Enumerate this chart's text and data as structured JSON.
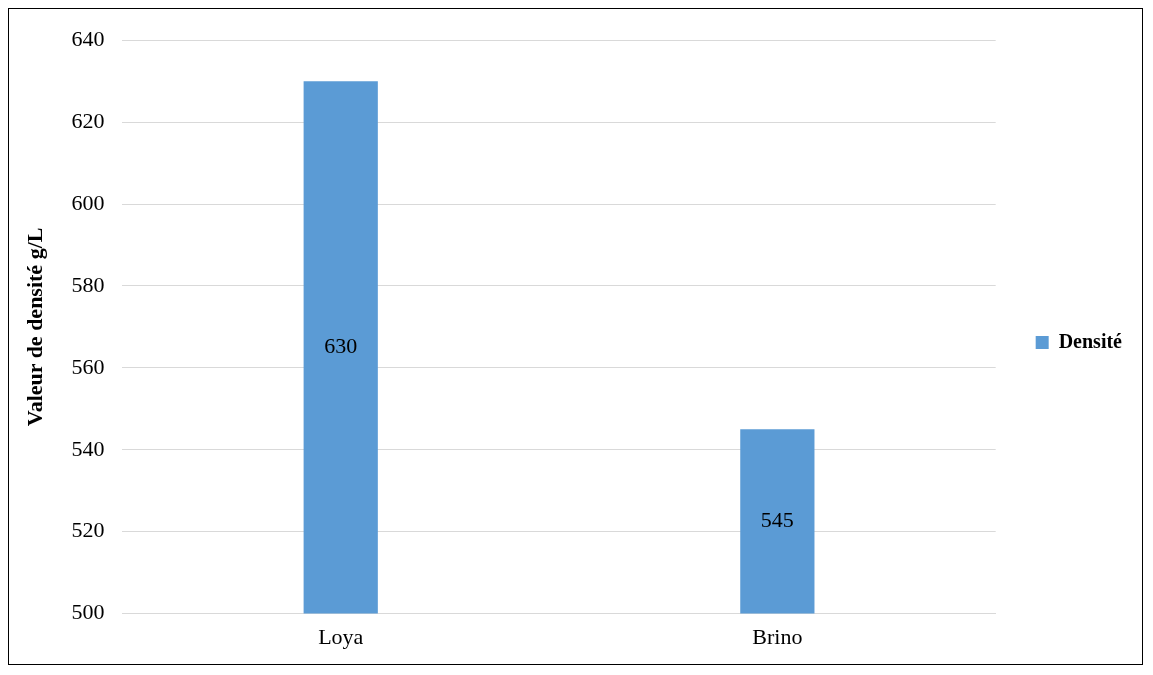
{
  "chart_data": {
    "type": "bar",
    "ylabel": "Valeur de densité g/L",
    "categories": [
      "Loya",
      "Brino"
    ],
    "series": [
      {
        "name": "Densité",
        "color": "#5b9bd5",
        "values": [
          630,
          545
        ]
      }
    ],
    "ylim": [
      500,
      640
    ],
    "yticks": [
      500,
      520,
      540,
      560,
      580,
      600,
      620,
      640
    ],
    "grid": "y",
    "legend": "right",
    "data_labels": true
  }
}
